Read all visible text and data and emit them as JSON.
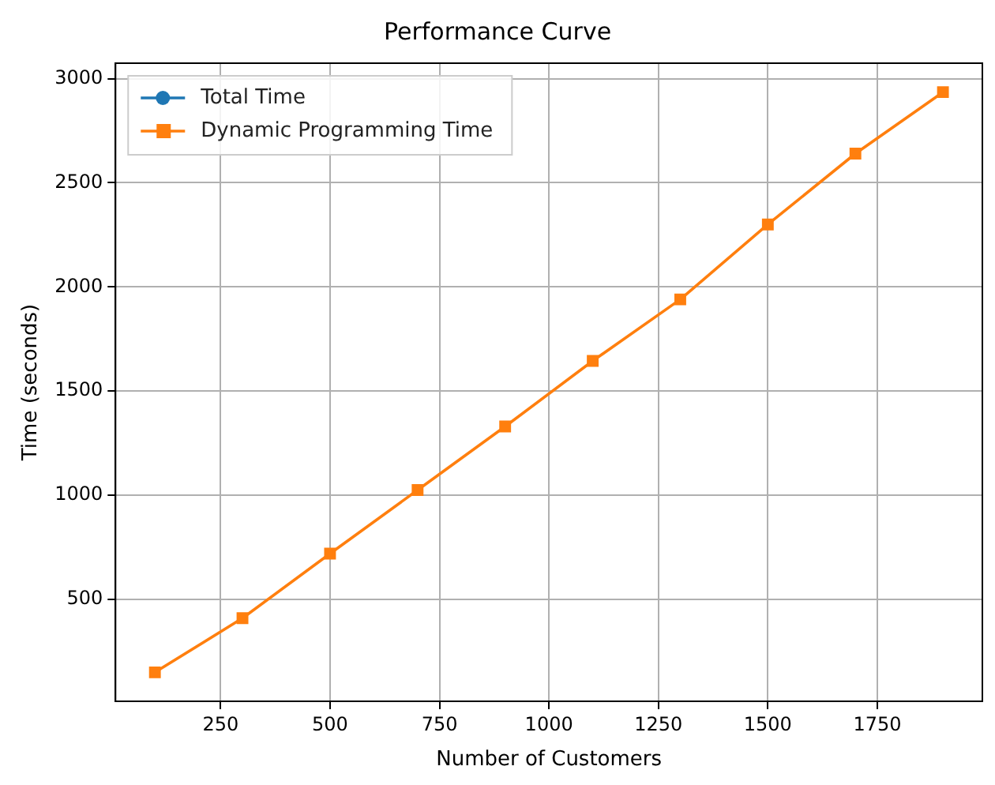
{
  "chart_data": {
    "type": "line",
    "title": "Performance Curve",
    "xlabel": "Number of Customers",
    "ylabel": "Time (seconds)",
    "x": [
      100,
      300,
      500,
      700,
      900,
      1100,
      1300,
      1500,
      1700,
      1900
    ],
    "series": [
      {
        "name": "Total Time",
        "color": "#1f77b4",
        "marker": "circle",
        "values": [
          null,
          null,
          null,
          null,
          null,
          null,
          null,
          null,
          null,
          null
        ]
      },
      {
        "name": "Dynamic Programming Time",
        "color": "#ff7f0e",
        "marker": "square",
        "values": [
          150,
          410,
          720,
          1025,
          1330,
          1645,
          1940,
          2300,
          2640,
          2935
        ]
      }
    ],
    "xlim": [
      10,
      1990
    ],
    "xticks": [
      250,
      500,
      750,
      1000,
      1250,
      1500,
      1750
    ],
    "ylim": [
      11,
      3074
    ],
    "yticks": [
      500,
      1000,
      1500,
      2000,
      2500,
      3000
    ],
    "grid": true,
    "legend": "top left",
    "line_style": "solid"
  }
}
